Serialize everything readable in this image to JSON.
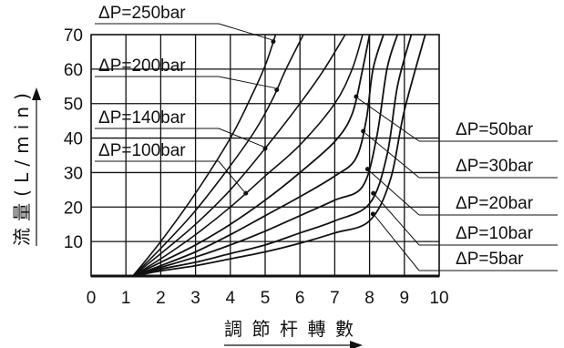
{
  "chart_data": {
    "type": "line",
    "xlabel": "調節杆轉數",
    "ylabel": "流量(L/min)",
    "x_ticks": [
      "0",
      "1",
      "2",
      "3",
      "4",
      "5",
      "6",
      "7",
      "8",
      "9",
      "10"
    ],
    "y_ticks": [
      "10",
      "20",
      "30",
      "40",
      "50",
      "60",
      "70"
    ],
    "xlim": [
      0,
      10
    ],
    "ylim": [
      0,
      70
    ],
    "grid": true,
    "series": [
      {
        "name": "ΔP=250bar",
        "side": "left",
        "points": [
          [
            1.2,
            0
          ],
          [
            2,
            10
          ],
          [
            3,
            24
          ],
          [
            4,
            40
          ],
          [
            4.6,
            52
          ],
          [
            5,
            61
          ],
          [
            5.3,
            70
          ]
        ]
      },
      {
        "name": "ΔP=200bar",
        "side": "left",
        "points": [
          [
            1.2,
            0
          ],
          [
            2,
            8
          ],
          [
            3,
            19
          ],
          [
            4,
            32
          ],
          [
            4.7,
            42
          ],
          [
            5.2,
            51
          ],
          [
            5.6,
            60
          ],
          [
            6.1,
            70
          ]
        ]
      },
      {
        "name": "ΔP=140bar",
        "side": "left",
        "points": [
          [
            1.2,
            0
          ],
          [
            2,
            6.5
          ],
          [
            3,
            15
          ],
          [
            4,
            25
          ],
          [
            5,
            37
          ],
          [
            6,
            50
          ],
          [
            6.7,
            60
          ],
          [
            7.3,
            70
          ]
        ]
      },
      {
        "name": "ΔP=100bar",
        "side": "left",
        "points": [
          [
            1.2,
            0
          ],
          [
            2,
            5
          ],
          [
            3,
            12
          ],
          [
            4,
            20
          ],
          [
            5,
            29
          ],
          [
            6,
            38
          ],
          [
            7,
            50
          ],
          [
            7.5,
            60
          ],
          [
            7.8,
            70
          ]
        ]
      },
      {
        "name": "ΔP=50bar",
        "side": "right",
        "points": [
          [
            1.2,
            0
          ],
          [
            2,
            4
          ],
          [
            3,
            9
          ],
          [
            4,
            15
          ],
          [
            5,
            22
          ],
          [
            6,
            30
          ],
          [
            7,
            39
          ],
          [
            7.5,
            47
          ],
          [
            7.8,
            60
          ],
          [
            8,
            70
          ]
        ]
      },
      {
        "name": "ΔP=30bar",
        "side": "right",
        "points": [
          [
            1.2,
            0
          ],
          [
            2,
            3
          ],
          [
            3,
            7
          ],
          [
            4,
            12
          ],
          [
            5,
            17.5
          ],
          [
            6,
            23
          ],
          [
            7,
            29
          ],
          [
            7.6,
            34
          ],
          [
            7.9,
            45
          ],
          [
            8.1,
            60
          ],
          [
            8.4,
            70
          ]
        ]
      },
      {
        "name": "ΔP=20bar",
        "side": "right",
        "points": [
          [
            1.2,
            0
          ],
          [
            2,
            2.5
          ],
          [
            3,
            5.5
          ],
          [
            4,
            9
          ],
          [
            5,
            13
          ],
          [
            6,
            17.5
          ],
          [
            7,
            22
          ],
          [
            7.8,
            26
          ],
          [
            8.2,
            40
          ],
          [
            8.5,
            60
          ],
          [
            8.8,
            70
          ]
        ]
      },
      {
        "name": "ΔP=10bar",
        "side": "right",
        "points": [
          [
            1.2,
            0
          ],
          [
            2,
            2
          ],
          [
            3,
            4
          ],
          [
            4,
            6.5
          ],
          [
            5,
            9
          ],
          [
            6,
            12.5
          ],
          [
            7,
            16
          ],
          [
            8,
            21
          ],
          [
            8.5,
            35
          ],
          [
            8.8,
            55
          ],
          [
            9.2,
            70
          ]
        ]
      },
      {
        "name": "ΔP=5bar",
        "side": "right",
        "points": [
          [
            1.2,
            0
          ],
          [
            2,
            1.5
          ],
          [
            3,
            3
          ],
          [
            4,
            5
          ],
          [
            5,
            7
          ],
          [
            6,
            9.5
          ],
          [
            7,
            12.5
          ],
          [
            8,
            16
          ],
          [
            8.6,
            28
          ],
          [
            9,
            48
          ],
          [
            9.6,
            70
          ]
        ]
      }
    ]
  }
}
